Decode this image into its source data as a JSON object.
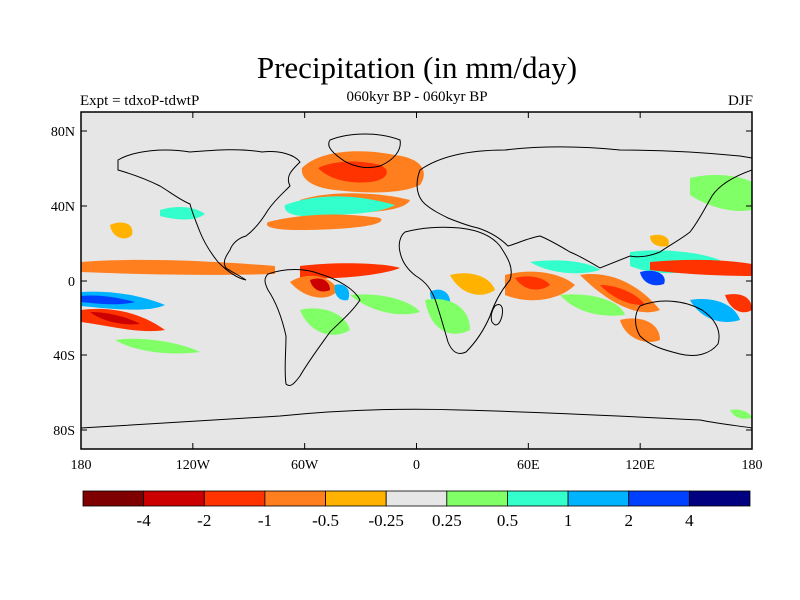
{
  "header": {
    "title": "Precipitation (in mm/day)",
    "subtitle": "060kyr BP - 060kyr BP",
    "left_label": "Expt = tdxoP-tdwtP",
    "right_label": "DJF"
  },
  "map": {
    "background_color": "#e6e6e6",
    "lat_ticks": [
      "80N",
      "40N",
      "0",
      "40S",
      "80S"
    ],
    "lon_ticks": [
      "180",
      "120W",
      "60W",
      "0",
      "60E",
      "120E",
      "180"
    ]
  },
  "colorbar": {
    "colors": [
      "#7f0000",
      "#cc0000",
      "#ff3300",
      "#ff7f1f",
      "#ffb300",
      "#e6e6e6",
      "#80ff66",
      "#33ffcc",
      "#00b3ff",
      "#0040ff",
      "#000080"
    ],
    "labels": [
      "-4",
      "-2",
      "-1",
      "-0.5",
      "-0.25",
      "0.25",
      "0.5",
      "1",
      "2",
      "4"
    ]
  }
}
